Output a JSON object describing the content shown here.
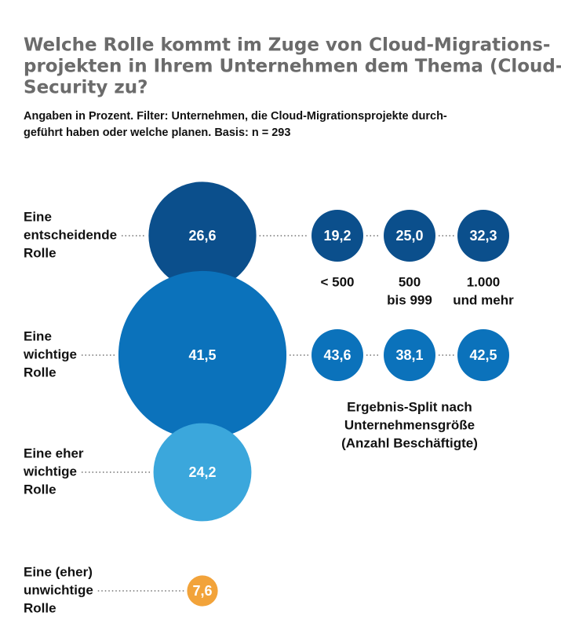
{
  "chart_data": {
    "type": "bubble",
    "title": [
      "Welche Rolle kommt im Zuge von Cloud-Migrations-",
      "projekten in Ihrem Unternehmen dem Thema (Cloud-)",
      "Security zu?"
    ],
    "subtitle": [
      "Angaben in Prozent. Filter: Unternehmen, die Cloud-Migrationsprojekte durch-",
      "geführt haben oder welche planen. Basis: n = 293"
    ],
    "categories": [
      [
        "Eine",
        "entscheidende",
        "Rolle"
      ],
      [
        "Eine",
        "wichtige",
        "Rolle"
      ],
      [
        "Eine eher",
        "wichtige",
        "Rolle"
      ],
      [
        "Eine (eher)",
        "unwichtige",
        "Rolle"
      ]
    ],
    "values": [
      26.6,
      41.5,
      24.2,
      7.6
    ],
    "value_labels": [
      "26,6",
      "41,5",
      "24,2",
      "7,6"
    ],
    "colors": [
      "#0b4f8c",
      "#0b72bb",
      "#3ba7dc",
      "#f2a33a"
    ],
    "split": {
      "groups": [
        [
          "< 500"
        ],
        [
          "500",
          "bis 999"
        ],
        [
          "1.000",
          "und mehr"
        ]
      ],
      "series": [
        {
          "values": [
            19.2,
            25.0,
            32.3
          ],
          "value_labels": [
            "19,2",
            "25,0",
            "32,3"
          ],
          "color": "#0b4f8c"
        },
        {
          "values": [
            43.6,
            38.1,
            42.5
          ],
          "value_labels": [
            "43,6",
            "38,1",
            "42,5"
          ],
          "color": "#0b72bb"
        }
      ],
      "note": [
        "Ergebnis-Split nach",
        "Unternehmensgröße",
        "(Anzahl Beschäftigte)"
      ]
    }
  }
}
